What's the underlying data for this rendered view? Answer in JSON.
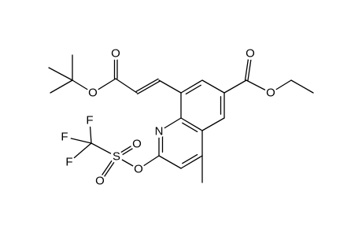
{
  "atoms": [
    {
      "label": "O"
    },
    {
      "label": "O"
    },
    {
      "label": "O"
    },
    {
      "label": "O"
    },
    {
      "label": "N"
    },
    {
      "label": "O"
    },
    {
      "label": "S"
    },
    {
      "label": "O"
    },
    {
      "label": "O"
    },
    {
      "label": "F"
    },
    {
      "label": "F"
    },
    {
      "label": "F"
    }
  ]
}
